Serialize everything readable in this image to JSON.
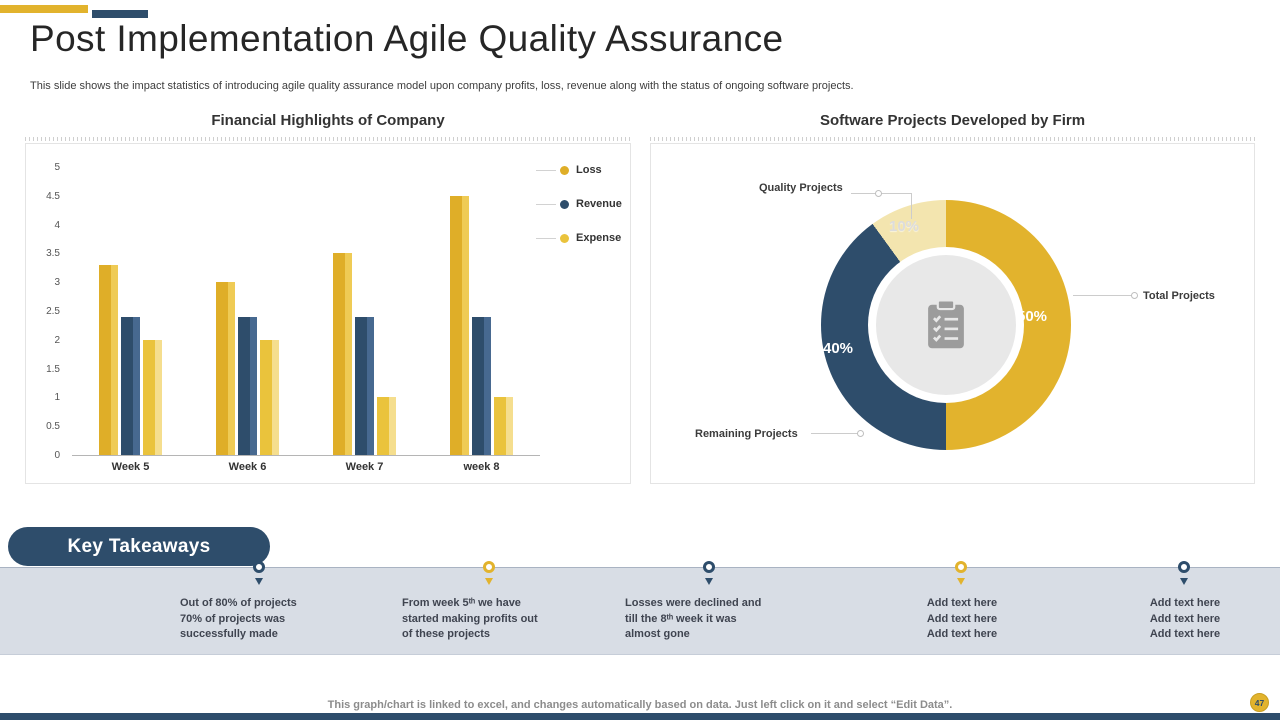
{
  "slide": {
    "title": "Post Implementation Agile Quality Assurance",
    "subtitle": "This slide shows the impact statistics of introducing agile quality assurance model upon company profits, loss, revenue along with the status of ongoing software projects.",
    "footer_note": "This graph/chart is linked to excel,  and changes automatically based on data. Just left click on it and select “Edit Data”.",
    "page_number": "47"
  },
  "colors": {
    "gold": "#E2B32D",
    "navy": "#2E4D6B",
    "band": "#D8DDE5"
  },
  "icons": {
    "donut_center": "clipboard-checklist-icon",
    "timeline_marker": "down-arrow-icon"
  },
  "chart_data": [
    {
      "type": "bar",
      "title": "Financial Highlights of Company",
      "categories": [
        "Week 5",
        "Week 6",
        "Week 7",
        "week 8"
      ],
      "series": [
        {
          "name": "Loss",
          "color": "#DFAE28",
          "color_light": "#EFCB55",
          "values": [
            3.3,
            3.0,
            3.5,
            4.5
          ]
        },
        {
          "name": "Revenue",
          "color": "#2E4D6B",
          "color_light": "#476990",
          "values": [
            2.4,
            2.4,
            2.4,
            2.4
          ]
        },
        {
          "name": "Expense",
          "color": "#EAC33C",
          "color_light": "#F5DE8E",
          "values": [
            2.0,
            2.0,
            1.0,
            1.0
          ]
        }
      ],
      "ylim": [
        0,
        5
      ],
      "yticks": [
        0,
        0.5,
        1,
        1.5,
        2,
        2.5,
        3,
        3.5,
        4,
        4.5,
        5
      ],
      "legend_position": "right",
      "grid": false
    },
    {
      "type": "pie",
      "title": "Software Projects Developed by Firm",
      "donut": true,
      "slices": [
        {
          "label": "Total Projects",
          "value": 50,
          "pct": "50%",
          "color": "#E2B32D"
        },
        {
          "label": "Remaining Projects",
          "value": 40,
          "pct": "40%",
          "color": "#2E4D6B"
        },
        {
          "label": "Quality Projects",
          "value": 10,
          "pct": "10%",
          "color": "#F3E5AF"
        }
      ]
    }
  ],
  "key_takeaways": {
    "heading": "Key Takeaways",
    "items": [
      {
        "dot": "navy",
        "lines": [
          "Out of 80% of projects",
          "70%  of projects was",
          "successfully made"
        ]
      },
      {
        "dot": "gold",
        "lines": [
          "From week 5ᵗʰ we have",
          "started making profits out",
          "of these projects"
        ]
      },
      {
        "dot": "navy",
        "lines": [
          "Losses were declined and",
          "till the 8ᵗʰ week it was",
          "almost gone"
        ]
      },
      {
        "dot": "gold",
        "lines": [
          "Add text here",
          "Add text here",
          "Add text here"
        ]
      },
      {
        "dot": "navy",
        "lines": [
          "Add text here",
          "Add text here",
          "Add text here"
        ]
      }
    ]
  }
}
